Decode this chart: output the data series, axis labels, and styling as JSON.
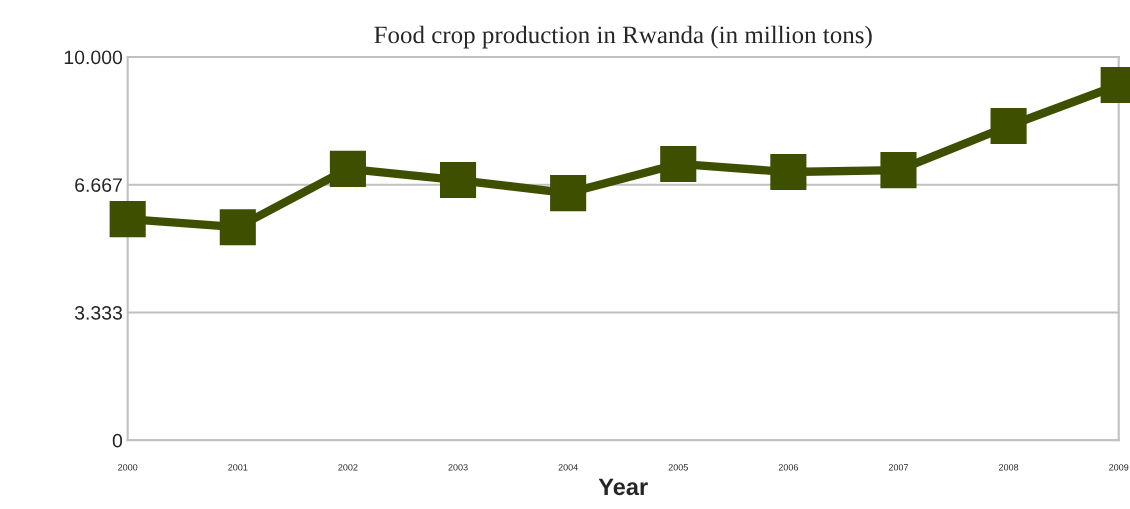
{
  "chart_data": {
    "type": "line",
    "title": "Food crop production in Rwanda (in million tons)",
    "xlabel": "Year",
    "categories": [
      "2000",
      "2001",
      "2002",
      "2003",
      "2004",
      "2005",
      "2006",
      "2007",
      "2008",
      "2009"
    ],
    "series": [
      {
        "color": "#3e5000",
        "values": [
          5.77,
          5.56,
          7.08,
          6.79,
          6.45,
          7.21,
          7.0,
          7.05,
          8.2,
          9.27
        ]
      }
    ],
    "ylim": [
      0,
      10
    ],
    "yticks": [
      0,
      {
        "value": 3.333,
        "label": "3.333"
      },
      {
        "value": 6.667,
        "label": "6.667"
      },
      {
        "value": 10,
        "label": "10.000"
      }
    ],
    "grid": "y",
    "marker": "square",
    "line_style": "solid"
  }
}
